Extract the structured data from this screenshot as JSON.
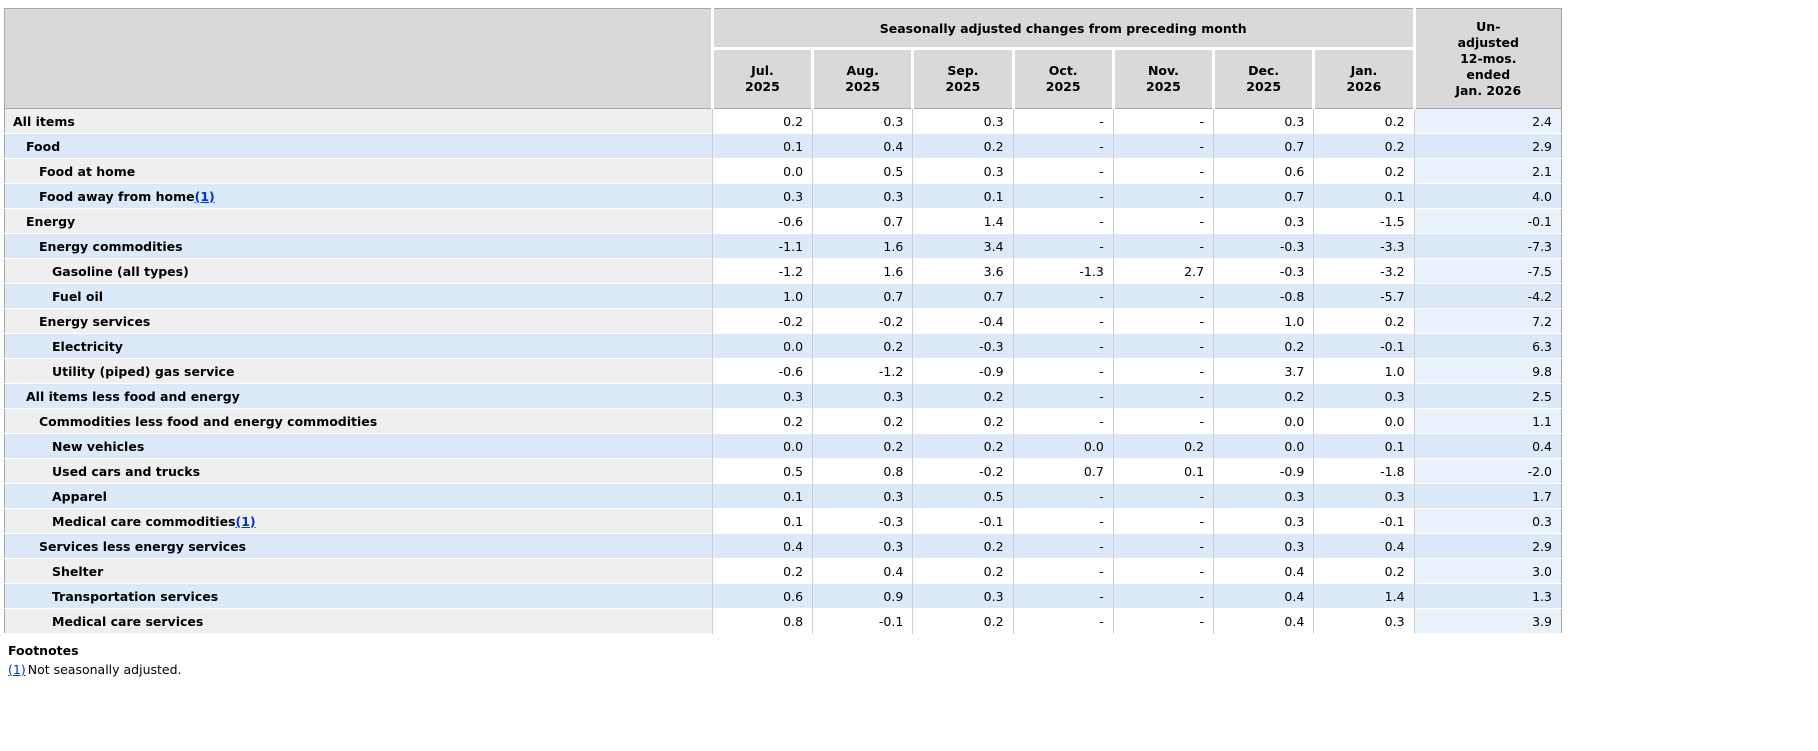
{
  "colors": {
    "header_bg": "#d9d9d9",
    "row_blue": "#dbe9f9",
    "label_gray": "#efefef",
    "un_tint": "#e9f1fb",
    "link_blue": "#0033cc"
  },
  "table": {
    "header": {
      "sa_title": "Seasonally adjusted changes from preceding month",
      "unadjusted_title": "Un-\nadjusted\n12-mos.\nended\nJan. 2026",
      "months": [
        "Jul.\n2025",
        "Aug.\n2025",
        "Sep.\n2025",
        "Oct.\n2025",
        "Nov.\n2025",
        "Dec.\n2025",
        "Jan.\n2026"
      ]
    },
    "rows": [
      {
        "label": "All items",
        "indent": 0,
        "footnote": "",
        "values": [
          "0.2",
          "0.3",
          "0.3",
          "-",
          "-",
          "0.3",
          "0.2",
          "2.4"
        ]
      },
      {
        "label": "Food",
        "indent": 1,
        "footnote": "",
        "values": [
          "0.1",
          "0.4",
          "0.2",
          "-",
          "-",
          "0.7",
          "0.2",
          "2.9"
        ]
      },
      {
        "label": "Food at home",
        "indent": 2,
        "footnote": "",
        "values": [
          "0.0",
          "0.5",
          "0.3",
          "-",
          "-",
          "0.6",
          "0.2",
          "2.1"
        ]
      },
      {
        "label": "Food away from home",
        "indent": 2,
        "footnote": "(1)",
        "values": [
          "0.3",
          "0.3",
          "0.1",
          "-",
          "-",
          "0.7",
          "0.1",
          "4.0"
        ]
      },
      {
        "label": "Energy",
        "indent": 1,
        "footnote": "",
        "values": [
          "-0.6",
          "0.7",
          "1.4",
          "-",
          "-",
          "0.3",
          "-1.5",
          "-0.1"
        ]
      },
      {
        "label": "Energy commodities",
        "indent": 2,
        "footnote": "",
        "values": [
          "-1.1",
          "1.6",
          "3.4",
          "-",
          "-",
          "-0.3",
          "-3.3",
          "-7.3"
        ]
      },
      {
        "label": "Gasoline (all types)",
        "indent": 3,
        "footnote": "",
        "values": [
          "-1.2",
          "1.6",
          "3.6",
          "-1.3",
          "2.7",
          "-0.3",
          "-3.2",
          "-7.5"
        ]
      },
      {
        "label": "Fuel oil",
        "indent": 3,
        "footnote": "",
        "values": [
          "1.0",
          "0.7",
          "0.7",
          "-",
          "-",
          "-0.8",
          "-5.7",
          "-4.2"
        ]
      },
      {
        "label": "Energy services",
        "indent": 2,
        "footnote": "",
        "values": [
          "-0.2",
          "-0.2",
          "-0.4",
          "-",
          "-",
          "1.0",
          "0.2",
          "7.2"
        ]
      },
      {
        "label": "Electricity",
        "indent": 3,
        "footnote": "",
        "values": [
          "0.0",
          "0.2",
          "-0.3",
          "-",
          "-",
          "0.2",
          "-0.1",
          "6.3"
        ]
      },
      {
        "label": "Utility (piped) gas service",
        "indent": 3,
        "footnote": "",
        "values": [
          "-0.6",
          "-1.2",
          "-0.9",
          "-",
          "-",
          "3.7",
          "1.0",
          "9.8"
        ]
      },
      {
        "label": "All items less food and energy",
        "indent": 1,
        "footnote": "",
        "values": [
          "0.3",
          "0.3",
          "0.2",
          "-",
          "-",
          "0.2",
          "0.3",
          "2.5"
        ]
      },
      {
        "label": "Commodities less food and energy commodities",
        "indent": 2,
        "footnote": "",
        "values": [
          "0.2",
          "0.2",
          "0.2",
          "-",
          "-",
          "0.0",
          "0.0",
          "1.1"
        ]
      },
      {
        "label": "New vehicles",
        "indent": 3,
        "footnote": "",
        "values": [
          "0.0",
          "0.2",
          "0.2",
          "0.0",
          "0.2",
          "0.0",
          "0.1",
          "0.4"
        ]
      },
      {
        "label": "Used cars and trucks",
        "indent": 3,
        "footnote": "",
        "values": [
          "0.5",
          "0.8",
          "-0.2",
          "0.7",
          "0.1",
          "-0.9",
          "-1.8",
          "-2.0"
        ]
      },
      {
        "label": "Apparel",
        "indent": 3,
        "footnote": "",
        "values": [
          "0.1",
          "0.3",
          "0.5",
          "-",
          "-",
          "0.3",
          "0.3",
          "1.7"
        ]
      },
      {
        "label": "Medical care commodities",
        "indent": 3,
        "footnote": "(1)",
        "values": [
          "0.1",
          "-0.3",
          "-0.1",
          "-",
          "-",
          "0.3",
          "-0.1",
          "0.3"
        ]
      },
      {
        "label": "Services less energy services",
        "indent": 2,
        "footnote": "",
        "values": [
          "0.4",
          "0.3",
          "0.2",
          "-",
          "-",
          "0.3",
          "0.4",
          "2.9"
        ]
      },
      {
        "label": "Shelter",
        "indent": 3,
        "footnote": "",
        "values": [
          "0.2",
          "0.4",
          "0.2",
          "-",
          "-",
          "0.4",
          "0.2",
          "3.0"
        ]
      },
      {
        "label": "Transportation services",
        "indent": 3,
        "footnote": "",
        "values": [
          "0.6",
          "0.9",
          "0.3",
          "-",
          "-",
          "0.4",
          "1.4",
          "1.3"
        ]
      },
      {
        "label": "Medical care services",
        "indent": 3,
        "footnote": "",
        "values": [
          "0.8",
          "-0.1",
          "0.2",
          "-",
          "-",
          "0.4",
          "0.3",
          "3.9"
        ]
      }
    ],
    "footnotes": {
      "title": "Footnotes",
      "items": [
        {
          "marker": "(1)",
          "text": "Not seasonally adjusted."
        }
      ]
    }
  }
}
